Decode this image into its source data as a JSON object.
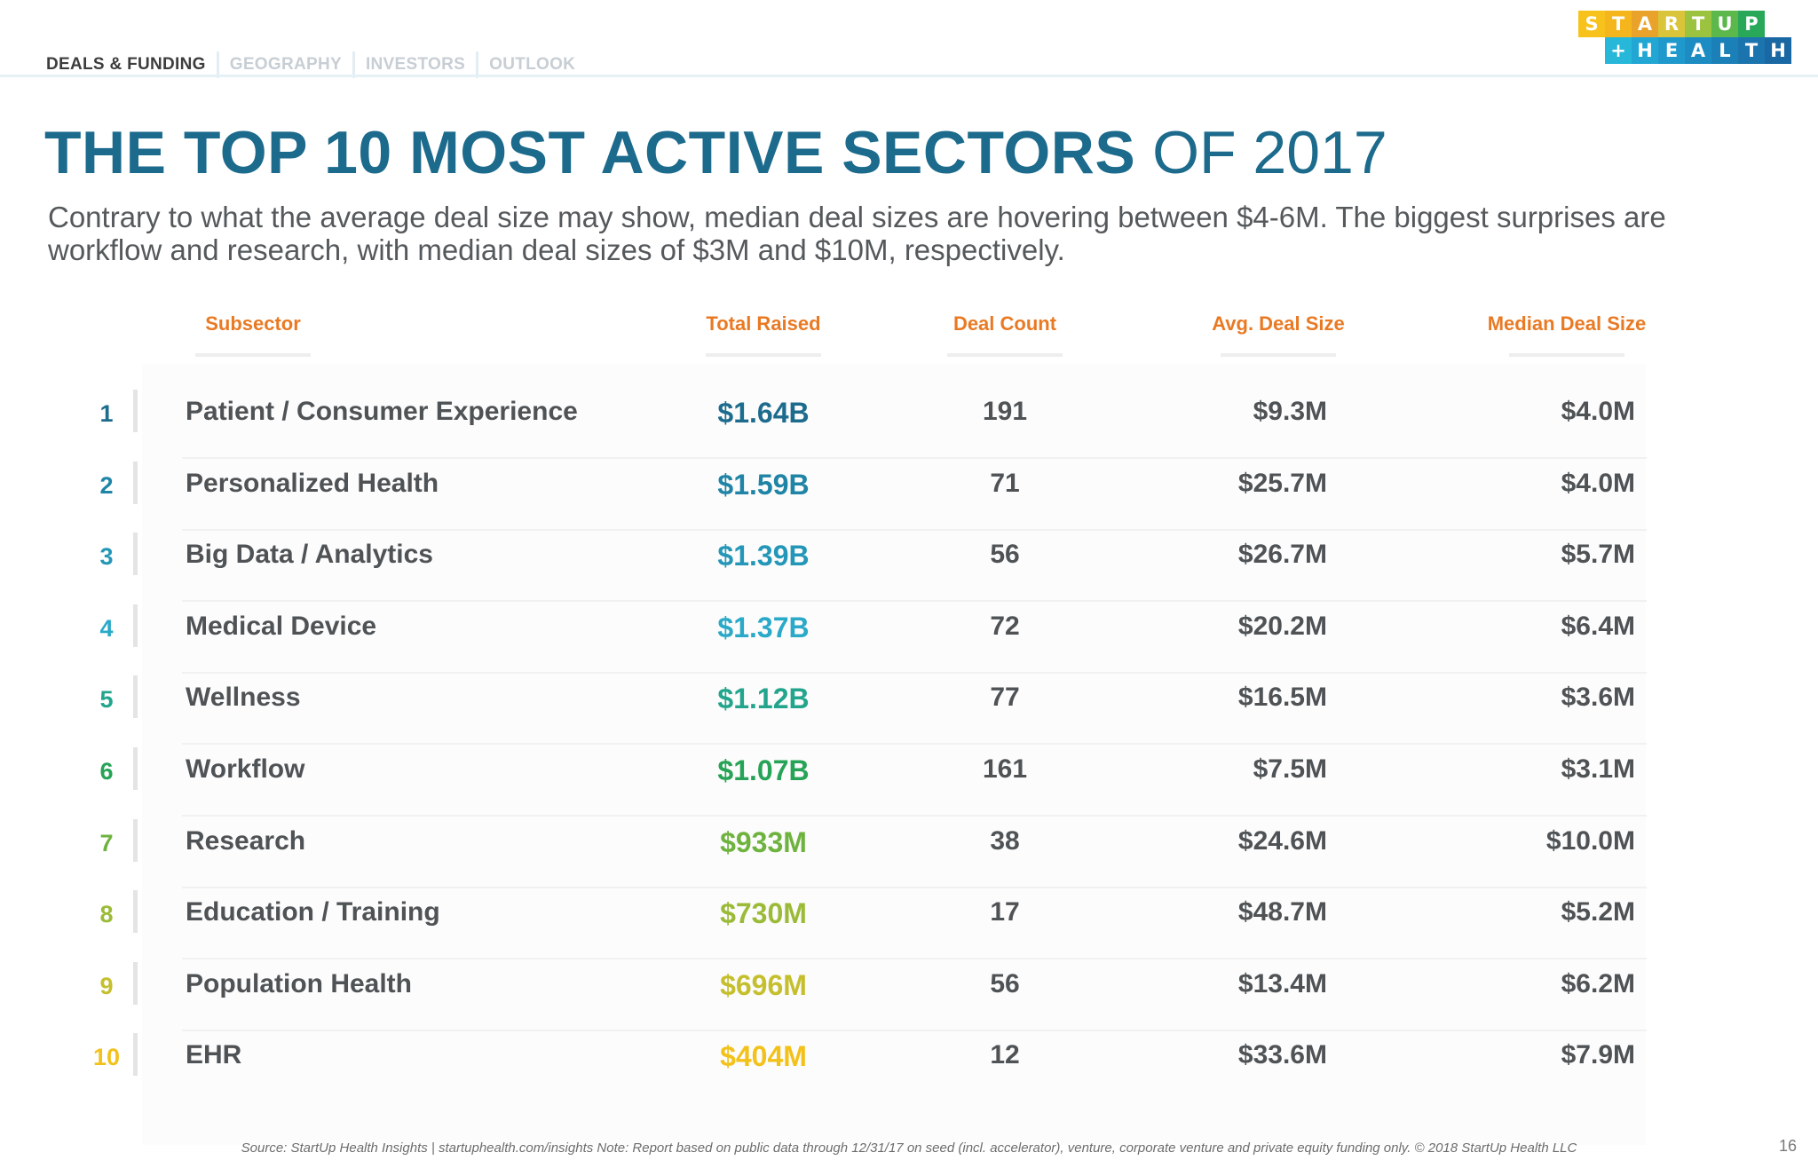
{
  "nav": {
    "tabs": [
      {
        "label": "DEALS & FUNDING",
        "active": true
      },
      {
        "label": "GEOGRAPHY",
        "active": false
      },
      {
        "label": "INVESTORS",
        "active": false
      },
      {
        "label": "OUTLOOK",
        "active": false
      }
    ]
  },
  "logo": {
    "row1": [
      "S",
      "T",
      "A",
      "R",
      "T",
      "U",
      "P"
    ],
    "row2": [
      "+",
      "H",
      "E",
      "A",
      "L",
      "T",
      "H"
    ],
    "row1_colors": [
      "#f7c21c",
      "#f5b51c",
      "#eaa32a",
      "#d9c43a",
      "#9cc340",
      "#5cb84b",
      "#29a85a"
    ],
    "row2_colors": [
      "#27b7d9",
      "#22a7d4",
      "#1f99cc",
      "#1d8cc2",
      "#1c80b8",
      "#1b74ad",
      "#1a68a3"
    ]
  },
  "heading": {
    "title_bold": "THE TOP 10 MOST ACTIVE SECTORS",
    "title_light": " OF 2017",
    "subtitle": "Contrary to what the average deal size may show, median deal sizes are hovering between $4-6M. The biggest surprises are workflow and research, with median deal sizes of $3M and $10M, respectively."
  },
  "table": {
    "headers": {
      "subsector": "Subsector",
      "total": "Total Raised",
      "count": "Deal Count",
      "avg": "Avg. Deal Size",
      "median": "Median Deal Size"
    },
    "rows": [
      {
        "rank": "1",
        "subsector": "Patient / Consumer Experience",
        "total": "$1.64B",
        "count": "191",
        "avg": "$9.3M",
        "median": "$4.0M",
        "color": "#1d6c8d"
      },
      {
        "rank": "2",
        "subsector": "Personalized Health",
        "total": "$1.59B",
        "count": "71",
        "avg": "$25.7M",
        "median": "$4.0M",
        "color": "#1f84a5"
      },
      {
        "rank": "3",
        "subsector": "Big Data / Analytics",
        "total": "$1.39B",
        "count": "56",
        "avg": "$26.7M",
        "median": "$5.7M",
        "color": "#2497b8"
      },
      {
        "rank": "4",
        "subsector": "Medical Device",
        "total": "$1.37B",
        "count": "72",
        "avg": "$20.2M",
        "median": "$6.4M",
        "color": "#2aa9c8"
      },
      {
        "rank": "5",
        "subsector": "Wellness",
        "total": "$1.12B",
        "count": "77",
        "avg": "$16.5M",
        "median": "$3.6M",
        "color": "#22a58c"
      },
      {
        "rank": "6",
        "subsector": "Workflow",
        "total": "$1.07B",
        "count": "161",
        "avg": "$7.5M",
        "median": "$3.1M",
        "color": "#26a356"
      },
      {
        "rank": "7",
        "subsector": "Research",
        "total": "$933M",
        "count": "38",
        "avg": "$24.6M",
        "median": "$10.0M",
        "color": "#6fb33f"
      },
      {
        "rank": "8",
        "subsector": "Education / Training",
        "total": "$730M",
        "count": "17",
        "avg": "$48.7M",
        "median": "$5.2M",
        "color": "#9bbb38"
      },
      {
        "rank": "9",
        "subsector": "Population Health",
        "total": "$696M",
        "count": "56",
        "avg": "$13.4M",
        "median": "$6.2M",
        "color": "#c5bf2e"
      },
      {
        "rank": "10",
        "subsector": "EHR",
        "total": "$404M",
        "count": "12",
        "avg": "$33.6M",
        "median": "$7.9M",
        "color": "#f2c21b"
      }
    ]
  },
  "footer": {
    "source": "Source: StartUp Health Insights | startuphealth.com/insights Note: Report based on public data through 12/31/17 on seed (incl. accelerator), venture, corporate venture and private equity funding only. © 2018 StartUp Health LLC",
    "page_number": "16"
  }
}
